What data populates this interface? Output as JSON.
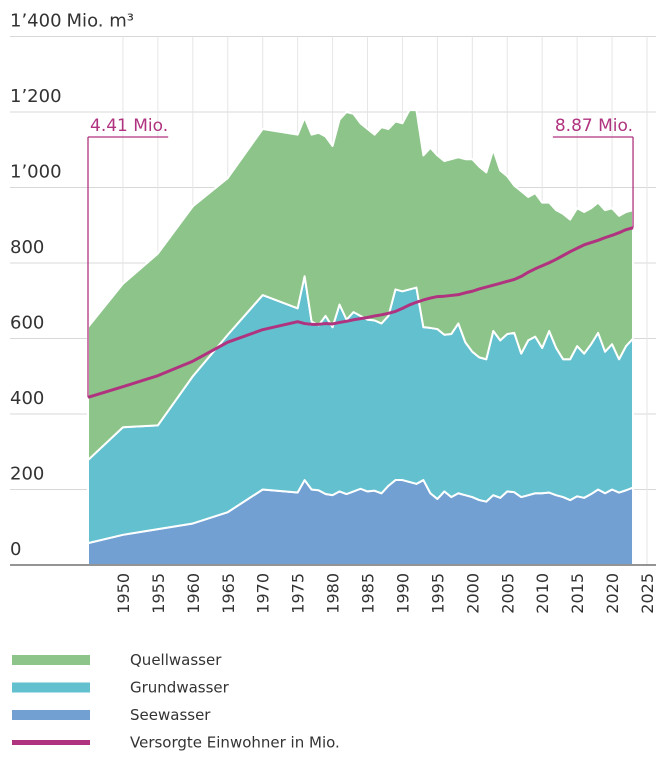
{
  "chart_data": {
    "type": "stacked_area",
    "y_label": "Mio. m³",
    "annotations": [
      "4.41 Mio.",
      "8.87 Mio."
    ],
    "x": [
      1945,
      1950,
      1955,
      1960,
      1965,
      1970,
      1975,
      1976,
      1977,
      1978,
      1979,
      1980,
      1981,
      1982,
      1983,
      1984,
      1985,
      1986,
      1987,
      1988,
      1989,
      1990,
      1991,
      1992,
      1993,
      1994,
      1995,
      1996,
      1997,
      1998,
      1999,
      2000,
      2001,
      2002,
      2003,
      2004,
      2005,
      2006,
      2007,
      2008,
      2009,
      2010,
      2011,
      2012,
      2013,
      2014,
      2015,
      2016,
      2017,
      2018,
      2019,
      2020,
      2021,
      2022,
      2023
    ],
    "series": [
      {
        "name": "Quellwasser",
        "color": "#8dc48a",
        "values": [
          352,
          380,
          455,
          450,
          415,
          440,
          460,
          420,
          495,
          510,
          475,
          480,
          490,
          550,
          525,
          510,
          505,
          492,
          520,
          495,
          445,
          445,
          475,
          470,
          455,
          477,
          460,
          460,
          463,
          440,
          485,
          510,
          505,
          495,
          480,
          450,
          418,
          390,
          430,
          380,
          380,
          385,
          340,
          365,
          385,
          370,
          365,
          375,
          360,
          345,
          375,
          360,
          380,
          355,
          340
        ]
      },
      {
        "name": "Grundwasser",
        "color": "#62c0cf",
        "values": [
          220,
          285,
          275,
          390,
          470,
          515,
          488,
          540,
          445,
          437,
          472,
          445,
          495,
          462,
          475,
          458,
          455,
          451,
          450,
          450,
          505,
          500,
          510,
          520,
          405,
          438,
          450,
          415,
          432,
          450,
          405,
          385,
          378,
          377,
          435,
          417,
          417,
          422,
          380,
          410,
          415,
          385,
          428,
          390,
          365,
          373,
          398,
          382,
          397,
          415,
          375,
          385,
          353,
          382,
          395
        ]
      },
      {
        "name": "Seewasser",
        "color": "#72a0d3",
        "values": [
          58,
          80,
          95,
          110,
          140,
          200,
          192,
          225,
          200,
          198,
          188,
          185,
          195,
          188,
          195,
          202,
          195,
          197,
          190,
          210,
          225,
          225,
          220,
          215,
          225,
          190,
          175,
          195,
          180,
          190,
          185,
          180,
          172,
          168,
          185,
          178,
          195,
          193,
          180,
          185,
          190,
          190,
          192,
          185,
          180,
          172,
          182,
          178,
          188,
          200,
          190,
          200,
          192,
          198,
          205
        ]
      },
      {
        "name": "Versorgte Einwohner in Mio.",
        "color": "#b0337f",
        "axis": "y2",
        "values": [
          4.41,
          4.69,
          4.98,
          5.36,
          5.86,
          6.19,
          6.4,
          6.35,
          6.33,
          6.33,
          6.35,
          6.34,
          6.38,
          6.41,
          6.45,
          6.48,
          6.51,
          6.55,
          6.58,
          6.62,
          6.67,
          6.75,
          6.84,
          6.91,
          6.97,
          7.02,
          7.06,
          7.07,
          7.09,
          7.11,
          7.16,
          7.2,
          7.26,
          7.31,
          7.36,
          7.41,
          7.46,
          7.51,
          7.59,
          7.7,
          7.79,
          7.87,
          7.95,
          8.04,
          8.14,
          8.24,
          8.33,
          8.42,
          8.48,
          8.54,
          8.61,
          8.67,
          8.74,
          8.82,
          8.87
        ]
      }
    ],
    "xlim": [
      1945,
      2025
    ],
    "xticks": [
      1950,
      1955,
      1960,
      1965,
      1970,
      1975,
      1980,
      1985,
      1990,
      1995,
      2000,
      2005,
      2010,
      2015,
      2020,
      2025
    ],
    "ylim": [
      0,
      1400
    ],
    "yticks": [
      0,
      200,
      400,
      600,
      800,
      {
        "value": 1000,
        "label": "1’000"
      },
      {
        "value": 1200,
        "label": "1’200"
      },
      {
        "value": 1400,
        "label": "1’400"
      }
    ],
    "y2lim": [
      0,
      13.9
    ],
    "grid": true,
    "legend": "bottom"
  }
}
